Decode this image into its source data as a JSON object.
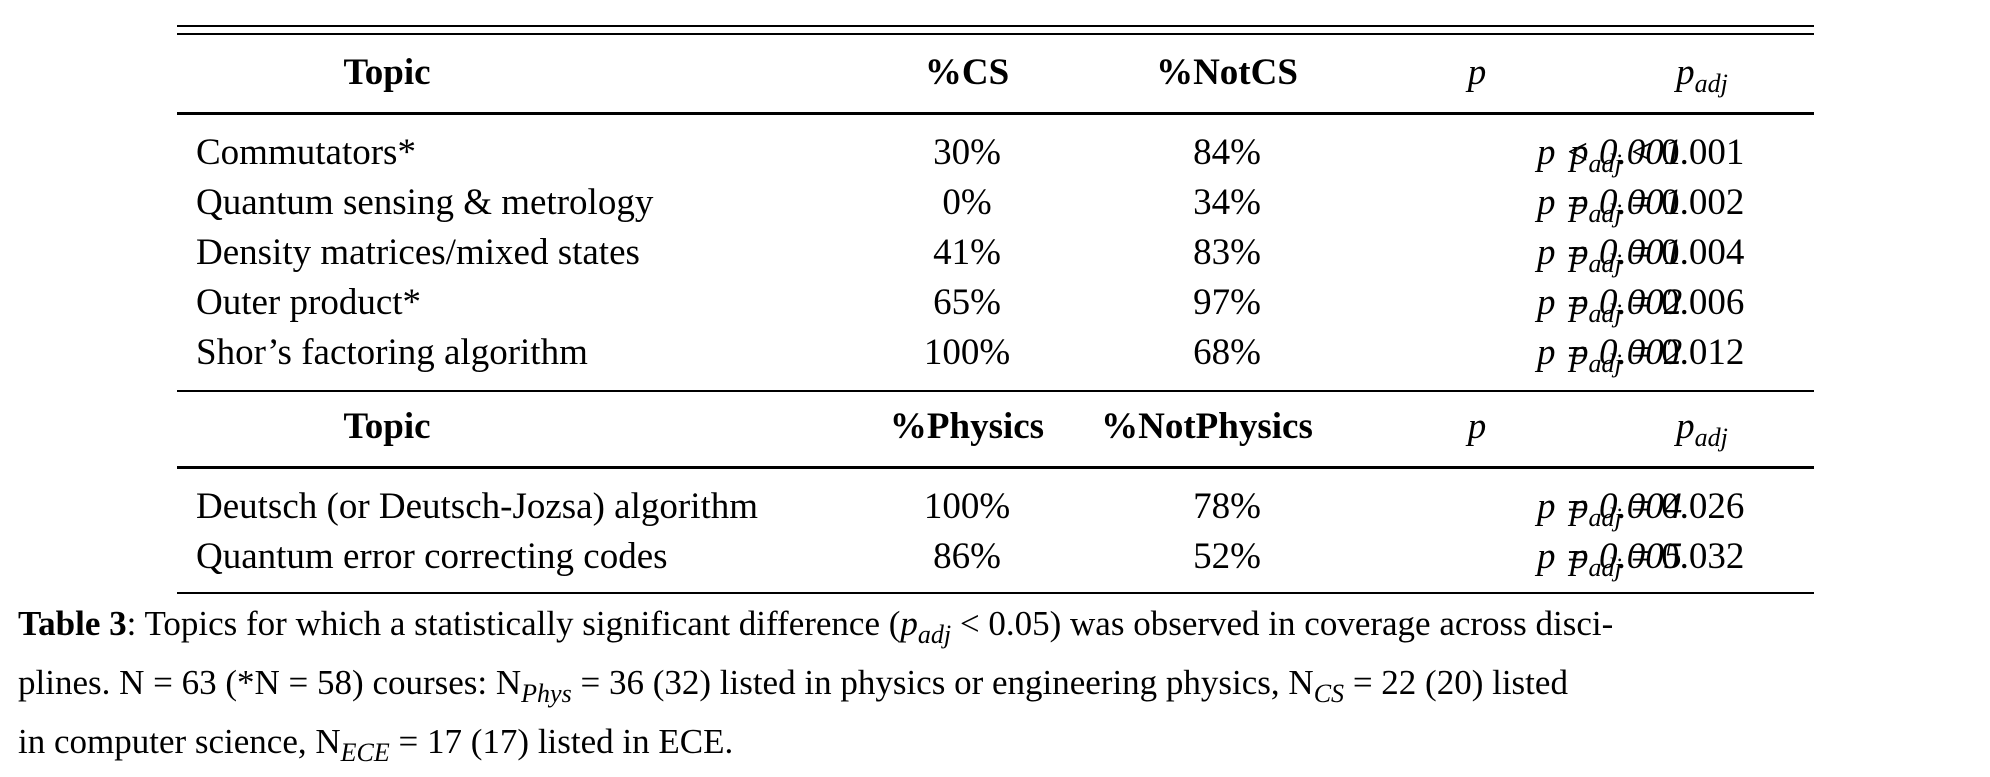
{
  "table": {
    "section1": {
      "headers": {
        "topic": "Topic",
        "col_a": "%CS",
        "col_b": "%NotCS",
        "p": "p",
        "p_adj": "p",
        "p_adj_sub": "adj"
      },
      "rows": [
        {
          "topic": "Commutators*",
          "a": "30%",
          "b": "84%",
          "p_rel": "p < 0.001",
          "padj_rel": "< 0.001"
        },
        {
          "topic": "Quantum sensing & metrology",
          "a": "0%",
          "b": "34%",
          "p_rel": "p = 0.001",
          "padj_rel": "= 0.002"
        },
        {
          "topic": "Density matrices/mixed states",
          "a": "41%",
          "b": "83%",
          "p_rel": "p = 0.001",
          "padj_rel": "= 0.004"
        },
        {
          "topic": "Outer product*",
          "a": "65%",
          "b": "97%",
          "p_rel": "p = 0.002",
          "padj_rel": "= 0.006"
        },
        {
          "topic": "Shor’s factoring algorithm",
          "a": "100%",
          "b": "68%",
          "p_rel": "p = 0.002",
          "padj_rel": "= 0.012"
        }
      ]
    },
    "section2": {
      "headers": {
        "topic": "Topic",
        "col_a": "%Physics",
        "col_b": "%NotPhysics",
        "p": "p",
        "p_adj": "p",
        "p_adj_sub": "adj"
      },
      "rows": [
        {
          "topic": "Deutsch (or Deutsch-Jozsa) algorithm",
          "a": "100%",
          "b": "78%",
          "p_rel": "p = 0.004",
          "padj_rel": "= 0.026"
        },
        {
          "topic": "Quantum error correcting codes",
          "a": "86%",
          "b": "52%",
          "p_rel": "p = 0.005",
          "padj_rel": "= 0.032"
        }
      ]
    }
  },
  "caption": {
    "label": "Table 3",
    "line1": ": Topics for which a statistically significant difference (",
    "line1_padj": "p",
    "line1_padj_sub": "adj",
    "line1_rest": " < 0.05) was observed in coverage across disci-",
    "line2": "plines. N = 63 (*N = 58) courses: N",
    "line2_sub1": "Phys",
    "line2_b": " = 36 (32) listed in physics or engineering physics, N",
    "line2_sub2": "CS",
    "line2_c": " = 22 (20) listed",
    "line3": "in computer science, N",
    "line3_sub": "ECE",
    "line3_b": " = 17 (17) listed in ECE."
  }
}
